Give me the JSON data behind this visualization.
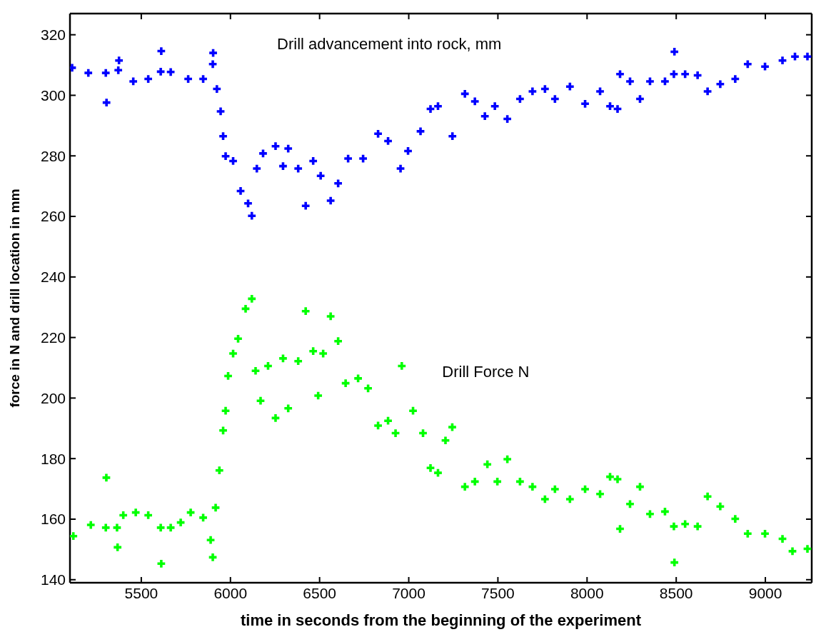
{
  "chart_data": {
    "type": "scatter",
    "xlabel": "time in seconds from the beginning of the experiment",
    "ylabel": "force in N and drill location in mm",
    "xlim": [
      5100,
      9260
    ],
    "xticks": [
      5500,
      6000,
      6500,
      7000,
      7500,
      8000,
      8500,
      9000
    ],
    "ylim": [
      139,
      327
    ],
    "yticks": [
      140,
      160,
      180,
      200,
      220,
      240,
      260,
      280,
      300,
      320
    ],
    "marker": "cross",
    "series": [
      {
        "name": "Drill advancement into rock, mm",
        "color": "#0000ff",
        "x": [
          5112,
          5203,
          5301,
          5305,
          5371,
          5375,
          5455,
          5539,
          5609,
          5612,
          5665,
          5763,
          5847,
          5901,
          5903,
          5924,
          5945,
          5959,
          5973,
          6015,
          6057,
          6099,
          6120,
          6148,
          6183,
          6253,
          6295,
          6324,
          6380,
          6422,
          6464,
          6506,
          6562,
          6604,
          6660,
          6744,
          6828,
          6884,
          6954,
          6996,
          7066,
          7122,
          7164,
          7245,
          7315,
          7371,
          7427,
          7483,
          7553,
          7624,
          7694,
          7764,
          7820,
          7904,
          7989,
          8073,
          8129,
          8171,
          8185,
          8241,
          8297,
          8353,
          8437,
          8487,
          8490,
          8550,
          8620,
          8676,
          8747,
          8831,
          8901,
          8998,
          9096,
          9166,
          9236
        ],
        "values": [
          309.1,
          307.4,
          307.4,
          297.6,
          308.3,
          311.5,
          304.6,
          305.4,
          307.8,
          314.6,
          307.7,
          305.4,
          305.4,
          310.3,
          314,
          302.1,
          294.7,
          286.5,
          279.9,
          278.3,
          268.4,
          264.3,
          260.2,
          275.8,
          280.8,
          283.2,
          276.6,
          282.4,
          275.8,
          263.5,
          278.3,
          273.4,
          265.2,
          270.9,
          279.1,
          279.1,
          287.3,
          284.9,
          275.8,
          281.6,
          288.1,
          295.5,
          296.4,
          286.5,
          300.5,
          298,
          293.1,
          296.4,
          292.2,
          298.8,
          301.3,
          302.1,
          298.8,
          302.9,
          297.2,
          301.3,
          296.4,
          295.5,
          307,
          304.6,
          298.8,
          304.6,
          304.6,
          307,
          314.4,
          307,
          306.6,
          301.3,
          303.7,
          305.4,
          310.3,
          309.5,
          311.5,
          312.8,
          312.8
        ]
      },
      {
        "name": "Drill Force N",
        "color": "#00ff00",
        "x": [
          5119,
          5217,
          5301,
          5304,
          5364,
          5367,
          5399,
          5469,
          5539,
          5609,
          5612,
          5665,
          5721,
          5777,
          5847,
          5889,
          5901,
          5917,
          5938,
          5959,
          5973,
          5987,
          6015,
          6043,
          6085,
          6120,
          6141,
          6169,
          6211,
          6253,
          6295,
          6324,
          6380,
          6422,
          6464,
          6492,
          6520,
          6562,
          6604,
          6646,
          6716,
          6772,
          6828,
          6884,
          6926,
          6961,
          7024,
          7080,
          7122,
          7164,
          7206,
          7244,
          7315,
          7371,
          7441,
          7497,
          7553,
          7624,
          7694,
          7764,
          7820,
          7904,
          7989,
          8073,
          8129,
          8171,
          8185,
          8241,
          8297,
          8353,
          8437,
          8487,
          8490,
          8550,
          8620,
          8676,
          8747,
          8831,
          8901,
          8998,
          9096,
          9152,
          9236
        ],
        "values": [
          154.4,
          158.1,
          157.2,
          173.7,
          157.2,
          150.7,
          161.3,
          162.2,
          161.3,
          157.2,
          145.3,
          157.2,
          158.9,
          162.2,
          160.5,
          153.1,
          147.4,
          163.8,
          176.1,
          189.3,
          195.8,
          207.3,
          214.7,
          219.6,
          229.5,
          232.8,
          209,
          199.1,
          210.6,
          193.4,
          213.1,
          196.6,
          212.2,
          228.7,
          215.5,
          200.8,
          214.7,
          227,
          218.8,
          204.9,
          206.5,
          203.2,
          190.9,
          192.5,
          188.4,
          210.6,
          195.8,
          188.4,
          176.9,
          175.3,
          186,
          190.4,
          170.7,
          172.4,
          178.1,
          172.4,
          179.8,
          172.4,
          170.7,
          166.6,
          169.9,
          166.6,
          169.9,
          168.3,
          174,
          173.2,
          156.8,
          165,
          170.7,
          161.7,
          162.5,
          157.6,
          145.7,
          158.4,
          157.6,
          167.5,
          164.2,
          160.1,
          155.2,
          155.2,
          153.5,
          149.4,
          150.2
        ]
      }
    ]
  }
}
